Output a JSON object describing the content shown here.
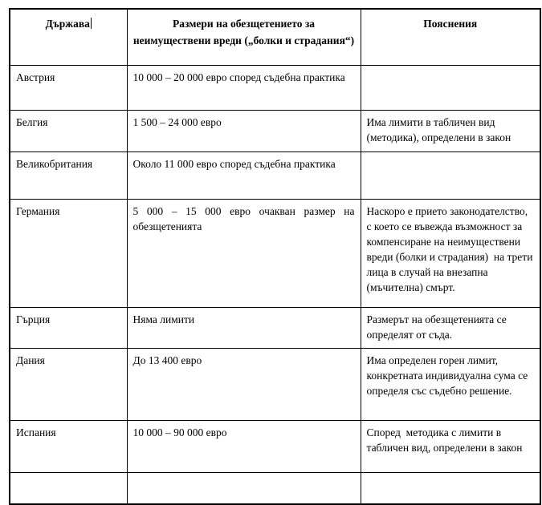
{
  "colors": {
    "border": "#000000",
    "background": "#ffffff",
    "text": "#000000"
  },
  "table": {
    "headers": {
      "country": "Държава",
      "amount": "Размери на обезщетението за неимуществени вреди („болки и страдания“)",
      "notes": "Пояснения"
    },
    "rows": [
      {
        "country": "Австрия",
        "amount": "10 000 – 20 000 евро според съдебна практика",
        "notes": ""
      },
      {
        "country": "Белгия",
        "amount": "1 500 – 24 000 евро",
        "notes": "Има лимити в табличен вид (методика), определени в закон"
      },
      {
        "country": "Великобритания",
        "amount": "Около 11 000 евро според съдебна практика",
        "notes": ""
      },
      {
        "country": "Германия",
        "amount": "5 000 – 15 000 евро очакван размер на обезщетенията",
        "notes": "Наскоро е прието законодателство, с което се въвежда възможност за компенсиране на неимуществени вреди (болки и страдания)  на трети лица в случай на внезапна (мъчителна) смърт."
      },
      {
        "country": "Гърция",
        "amount": "Няма лимити",
        "notes": "Размерът на обезщетенията се определят от съда."
      },
      {
        "country": "Дания",
        "amount": "До 13 400 евро",
        "notes": "Има определен горен лимит, конкретната индивидуална сума се определя със съдебно решение."
      },
      {
        "country": "Испания",
        "amount": "10 000 – 90 000 евро",
        "notes": "Според  методика с лимити в табличен вид, определени в закон"
      }
    ]
  }
}
